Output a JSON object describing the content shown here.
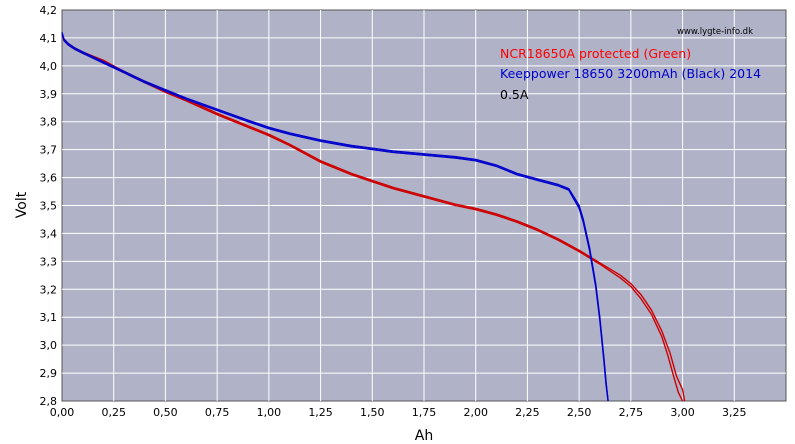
{
  "chart_data": {
    "type": "line",
    "title": "",
    "xlabel": "Ah",
    "ylabel": "Volt",
    "xlim": [
      0,
      3.5
    ],
    "ylim": [
      2.8,
      4.2
    ],
    "x_ticks": [
      "0,00",
      "0,25",
      "0,50",
      "0,75",
      "1,00",
      "1,25",
      "1,50",
      "1,75",
      "2,00",
      "2,25",
      "2,50",
      "2,75",
      "3,00",
      "3,25"
    ],
    "y_ticks": [
      "2,8",
      "2,9",
      "3,0",
      "3,1",
      "3,2",
      "3,3",
      "3,4",
      "3,5",
      "3,6",
      "3,7",
      "3,8",
      "3,9",
      "4,0",
      "4,1",
      "4,2"
    ],
    "grid": true,
    "background_color": "#b0b2c8",
    "grid_color": "#ffffff",
    "legend": {
      "placement": "top-right",
      "entries": [
        {
          "text": "NCR18650A protected (Green)",
          "color": "#ff0000"
        },
        {
          "text": "Keeppower 18650 3200mAh (Black) 2014",
          "color": "#0000cc"
        },
        {
          "text": "0.5A",
          "color": "#000000"
        }
      ]
    },
    "watermark": "www.lygte-info.dk",
    "series": [
      {
        "color": "#cc0000",
        "x": [
          0.0,
          0.01,
          0.03,
          0.06,
          0.1,
          0.15,
          0.2,
          0.25,
          0.3,
          0.4,
          0.5,
          0.6,
          0.75,
          0.9,
          1.0,
          1.1,
          1.25,
          1.4,
          1.5,
          1.6,
          1.75,
          1.9,
          2.0,
          2.1,
          2.2,
          2.3,
          2.4,
          2.5,
          2.6,
          2.7,
          2.75,
          2.8,
          2.85,
          2.9,
          2.93,
          2.96,
          2.98,
          3.0
        ],
        "y": [
          4.11,
          4.09,
          4.075,
          4.06,
          4.045,
          4.03,
          4.015,
          3.995,
          3.975,
          3.94,
          3.905,
          3.875,
          3.825,
          3.78,
          3.75,
          3.715,
          3.655,
          3.61,
          3.585,
          3.56,
          3.53,
          3.5,
          3.485,
          3.465,
          3.44,
          3.41,
          3.375,
          3.335,
          3.29,
          3.24,
          3.21,
          3.165,
          3.11,
          3.03,
          2.96,
          2.88,
          2.83,
          2.8
        ]
      },
      {
        "color": "#cc0000",
        "x": [
          0.0,
          0.01,
          0.03,
          0.06,
          0.1,
          0.15,
          0.2,
          0.25,
          0.3,
          0.4,
          0.5,
          0.6,
          0.75,
          0.9,
          1.0,
          1.1,
          1.25,
          1.4,
          1.5,
          1.6,
          1.75,
          1.9,
          2.0,
          2.1,
          2.2,
          2.3,
          2.4,
          2.5,
          2.6,
          2.7,
          2.75,
          2.8,
          2.85,
          2.9,
          2.94,
          2.97,
          3.0,
          3.01
        ],
        "y": [
          4.11,
          4.095,
          4.08,
          4.065,
          4.05,
          4.035,
          4.02,
          4.0,
          3.98,
          3.945,
          3.91,
          3.88,
          3.83,
          3.785,
          3.755,
          3.72,
          3.66,
          3.615,
          3.59,
          3.565,
          3.535,
          3.505,
          3.49,
          3.47,
          3.445,
          3.415,
          3.38,
          3.34,
          3.295,
          3.25,
          3.22,
          3.18,
          3.125,
          3.05,
          2.97,
          2.89,
          2.84,
          2.8
        ]
      },
      {
        "color": "#0000cc",
        "x": [
          0.0,
          0.01,
          0.03,
          0.06,
          0.1,
          0.2,
          0.3,
          0.4,
          0.5,
          0.6,
          0.75,
          0.9,
          1.0,
          1.1,
          1.25,
          1.4,
          1.5,
          1.6,
          1.75,
          1.9,
          2.0,
          2.1,
          2.2,
          2.3,
          2.4,
          2.45,
          2.5,
          2.52,
          2.55,
          2.58,
          2.6,
          2.62,
          2.63,
          2.64
        ],
        "y": [
          4.12,
          4.095,
          4.08,
          4.065,
          4.05,
          4.015,
          3.98,
          3.945,
          3.915,
          3.885,
          3.845,
          3.805,
          3.78,
          3.76,
          3.735,
          3.715,
          3.705,
          3.695,
          3.685,
          3.675,
          3.665,
          3.645,
          3.615,
          3.595,
          3.575,
          3.56,
          3.5,
          3.45,
          3.35,
          3.22,
          3.1,
          2.95,
          2.87,
          2.8
        ]
      },
      {
        "color": "#0000cc",
        "x": [
          0.0,
          0.01,
          0.03,
          0.06,
          0.1,
          0.2,
          0.3,
          0.4,
          0.5,
          0.6,
          0.75,
          0.9,
          1.0,
          1.1,
          1.25,
          1.4,
          1.5,
          1.6,
          1.75,
          1.9,
          2.0,
          2.1,
          2.2,
          2.3,
          2.4,
          2.45,
          2.5,
          2.52,
          2.55,
          2.58,
          2.6,
          2.62,
          2.63,
          2.64
        ],
        "y": [
          4.115,
          4.09,
          4.075,
          4.06,
          4.045,
          4.01,
          3.975,
          3.94,
          3.91,
          3.88,
          3.84,
          3.8,
          3.775,
          3.755,
          3.73,
          3.71,
          3.7,
          3.69,
          3.68,
          3.67,
          3.66,
          3.64,
          3.61,
          3.59,
          3.57,
          3.555,
          3.49,
          3.44,
          3.34,
          3.21,
          3.09,
          2.94,
          2.86,
          2.8
        ]
      }
    ]
  }
}
